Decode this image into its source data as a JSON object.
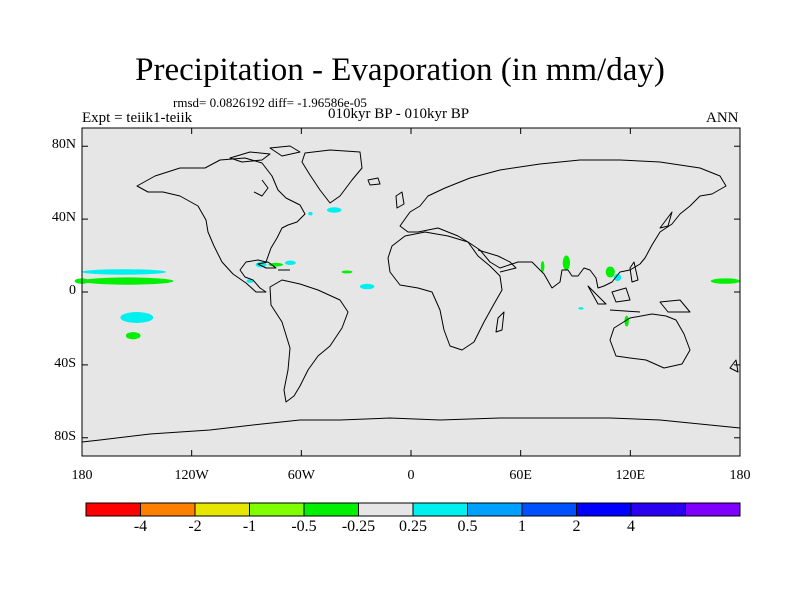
{
  "title": "Precipitation - Evaporation (in mm/day)",
  "stats": "rmsd= 0.0826192 diff= -1.96586e-05",
  "experiment": "Expt = teiik1-teiik",
  "period": "010kyr BP - 010kyr BP",
  "season": "ANN",
  "lat_labels": [
    {
      "text": "80N",
      "lat": 80
    },
    {
      "text": "40N",
      "lat": 40
    },
    {
      "text": "0",
      "lat": 0
    },
    {
      "text": "40S",
      "lat": -40
    },
    {
      "text": "80S",
      "lat": -80
    }
  ],
  "lon_labels": [
    {
      "text": "180",
      "lon": -180
    },
    {
      "text": "120W",
      "lon": -120
    },
    {
      "text": "60W",
      "lon": -60
    },
    {
      "text": "0",
      "lon": 0
    },
    {
      "text": "60E",
      "lon": 60
    },
    {
      "text": "120E",
      "lon": 120
    },
    {
      "text": "180",
      "lon": 180
    }
  ],
  "colorbar": {
    "colors": [
      "#ff0000",
      "#ff8000",
      "#e6e600",
      "#80ff00",
      "#00f000",
      "#e6e6e6",
      "#00f0f0",
      "#00a0ff",
      "#0050ff",
      "#0000ff",
      "#2b00f0",
      "#8000ff"
    ],
    "labels": [
      "-4",
      "-2",
      "-1",
      "-0.5",
      "-0.25",
      "0.25",
      "0.5",
      "1",
      "2",
      "4"
    ]
  },
  "colors": {
    "background": "#e6e6e6",
    "positive": "#00f0f0",
    "negative": "#00f000"
  },
  "anomaly_patches": [
    {
      "lon": -157,
      "lat": 11,
      "rlon": 23,
      "rlat": 1.5,
      "sign": "positive"
    },
    {
      "lon": -155,
      "lat": 6,
      "rlon": 25,
      "rlat": 2,
      "sign": "negative"
    },
    {
      "lon": -180,
      "lat": 6,
      "rlon": 4,
      "rlat": 1.5,
      "sign": "negative"
    },
    {
      "lon": -150,
      "lat": -14,
      "rlon": 9,
      "rlat": 3,
      "sign": "positive"
    },
    {
      "lon": -152,
      "lat": -24,
      "rlon": 4,
      "rlat": 2,
      "sign": "negative"
    },
    {
      "lon": -82,
      "lat": 15,
      "rlon": 3,
      "rlat": 1.5,
      "sign": "positive"
    },
    {
      "lon": -74,
      "lat": 15,
      "rlon": 4,
      "rlat": 1,
      "sign": "negative"
    },
    {
      "lon": -66,
      "lat": 16,
      "rlon": 3,
      "rlat": 1.2,
      "sign": "positive"
    },
    {
      "lon": -88,
      "lat": 6,
      "rlon": 2,
      "rlat": 1,
      "sign": "positive"
    },
    {
      "lon": -42,
      "lat": 45,
      "rlon": 4,
      "rlat": 1.5,
      "sign": "positive"
    },
    {
      "lon": -55,
      "lat": 43,
      "rlon": 1.2,
      "rlat": 1,
      "sign": "positive"
    },
    {
      "lon": -35,
      "lat": 11,
      "rlon": 3,
      "rlat": 0.8,
      "sign": "negative"
    },
    {
      "lon": -24,
      "lat": 3,
      "rlon": 4,
      "rlat": 1.5,
      "sign": "positive"
    },
    {
      "lon": 85,
      "lat": 16,
      "rlon": 2,
      "rlat": 4,
      "sign": "negative"
    },
    {
      "lon": 72,
      "lat": 14,
      "rlon": 1,
      "rlat": 3,
      "sign": "negative"
    },
    {
      "lon": 109,
      "lat": 11,
      "rlon": 2.5,
      "rlat": 3,
      "sign": "negative"
    },
    {
      "lon": 113,
      "lat": 8,
      "rlon": 2,
      "rlat": 2,
      "sign": "positive"
    },
    {
      "lon": 93,
      "lat": -9,
      "rlon": 1.5,
      "rlat": 0.7,
      "sign": "positive"
    },
    {
      "lon": 118,
      "lat": -16,
      "rlon": 1.2,
      "rlat": 3,
      "sign": "negative"
    },
    {
      "lon": 172,
      "lat": 6,
      "rlon": 8,
      "rlat": 1.5,
      "sign": "negative"
    }
  ]
}
